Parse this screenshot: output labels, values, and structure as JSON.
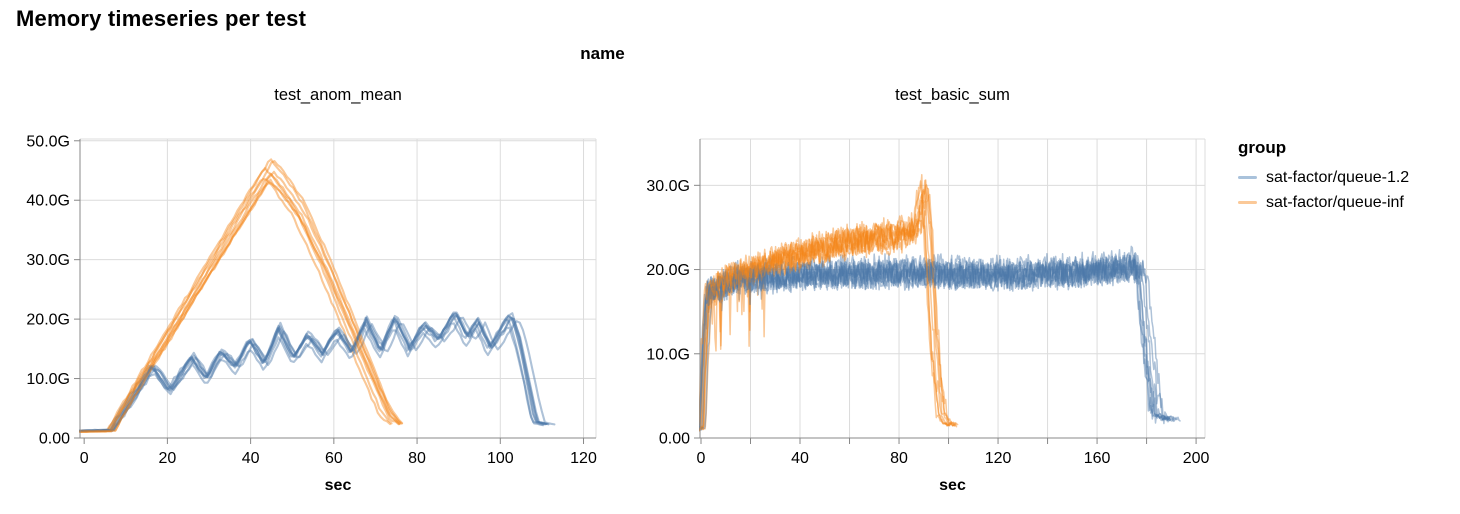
{
  "page_title": "Memory timeseries per test",
  "facet_header": "name",
  "colors": {
    "blue": "#4c78a8",
    "orange": "#f58518",
    "grid": "#dcdcdc",
    "axis": "#888888",
    "label": "#000000",
    "legend_blue_swatch": "#a9c2db",
    "legend_orange_swatch": "#fbc998"
  },
  "legend": {
    "title": "group",
    "position": "right",
    "items": [
      {
        "label": "sat-factor/queue-1.2",
        "swatch": "#a9c2db",
        "series_color": "#4c78a8"
      },
      {
        "label": "sat-factor/queue-inf",
        "swatch": "#fbc998",
        "series_color": "#f58518"
      }
    ]
  },
  "chart_data": [
    {
      "type": "line",
      "title": "test_anom_mean",
      "xlabel": "sec",
      "ylabel": "",
      "grid": true,
      "xlim": [
        -1,
        123
      ],
      "ylim": [
        0,
        50.3
      ],
      "x_ticks": [
        {
          "t": 0,
          "label": "0"
        },
        {
          "t": 20,
          "label": "20"
        },
        {
          "t": 40,
          "label": "40"
        },
        {
          "t": 60,
          "label": "60"
        },
        {
          "t": 80,
          "label": "80"
        },
        {
          "t": 100,
          "label": "100"
        },
        {
          "t": 120,
          "label": "120"
        }
      ],
      "y_ticks": [
        {
          "v": 0,
          "label": "0.00"
        },
        {
          "v": 10,
          "label": "10.0G"
        },
        {
          "v": 20,
          "label": "20.0G"
        },
        {
          "v": 30,
          "label": "30.0G"
        },
        {
          "v": 40,
          "label": "40.0G"
        },
        {
          "v": 50,
          "label": "50.0G"
        }
      ],
      "unit": "G",
      "series": [
        {
          "name": "sat-factor/queue-1.2",
          "color": "#4c78a8",
          "keypoints": [
            [
              -1,
              1.2
            ],
            [
              6.5,
              1.3
            ],
            [
              7.5,
              2.5
            ],
            [
              9,
              4
            ],
            [
              16.5,
              12
            ],
            [
              20.5,
              7.9
            ],
            [
              26,
              13.4
            ],
            [
              29.5,
              9.9
            ],
            [
              33,
              14.4
            ],
            [
              36.5,
              11.8
            ],
            [
              40,
              16.3
            ],
            [
              43.5,
              12.3
            ],
            [
              47,
              18.2
            ],
            [
              50.5,
              13.2
            ],
            [
              54,
              17.1
            ],
            [
              57.5,
              13.9
            ],
            [
              61,
              17.9
            ],
            [
              64.5,
              14.1
            ],
            [
              68,
              19.4
            ],
            [
              71.5,
              14.4
            ],
            [
              75,
              19.9
            ],
            [
              78.5,
              14.7
            ],
            [
              82,
              18.8
            ],
            [
              85.5,
              16.2
            ],
            [
              89.5,
              20.7
            ],
            [
              92.5,
              16.5
            ],
            [
              95,
              19.3
            ],
            [
              98,
              14.9
            ],
            [
              103,
              20.3
            ],
            [
              105,
              16
            ],
            [
              109,
              2.7
            ],
            [
              112,
              2.2
            ]
          ],
          "style": {
            "runs": 8,
            "dt": 0.75,
            "noise": 0.28,
            "t_jitter": 1.0,
            "v_jitter": 0.05,
            "v_offset": 0.9,
            "width": 2.1,
            "opacity": 0.45
          }
        },
        {
          "name": "sat-factor/queue-inf",
          "color": "#f58518",
          "keypoints": [
            [
              -1,
              1.1
            ],
            [
              6.5,
              1.2
            ],
            [
              8,
              3
            ],
            [
              11,
              6.5
            ],
            [
              44.5,
              44.8
            ],
            [
              47,
              43
            ],
            [
              52,
              38
            ],
            [
              58,
              29
            ],
            [
              64,
              19
            ],
            [
              69,
              10.5
            ],
            [
              73,
              4
            ],
            [
              75.5,
              2.4
            ]
          ],
          "style": {
            "runs": 8,
            "dt": 0.75,
            "noise": 0.25,
            "t_jitter": 1.2,
            "v_jitter": 0.04,
            "v_offset": 0.8,
            "width": 2.1,
            "opacity": 0.45
          }
        }
      ]
    },
    {
      "type": "line",
      "title": "test_basic_sum",
      "xlabel": "sec",
      "ylabel": "",
      "grid": true,
      "xlim": [
        -0.4,
        203.6
      ],
      "ylim": [
        0,
        35.5
      ],
      "x_ticks": [
        {
          "t": 0,
          "label": "0"
        },
        {
          "t": 20,
          "label": ""
        },
        {
          "t": 40,
          "label": "40"
        },
        {
          "t": 60,
          "label": ""
        },
        {
          "t": 80,
          "label": "80"
        },
        {
          "t": 100,
          "label": ""
        },
        {
          "t": 120,
          "label": "120"
        },
        {
          "t": 140,
          "label": ""
        },
        {
          "t": 160,
          "label": "160"
        },
        {
          "t": 180,
          "label": ""
        },
        {
          "t": 200,
          "label": "200"
        }
      ],
      "y_ticks": [
        {
          "v": 0,
          "label": "0.00"
        },
        {
          "v": 10,
          "label": "10.0G"
        },
        {
          "v": 20,
          "label": "20.0G"
        },
        {
          "v": 30,
          "label": "30.0G"
        }
      ],
      "unit": "G",
      "series": [
        {
          "name": "sat-factor/queue-1.2",
          "color": "#4c78a8",
          "keypoints": [
            [
              -1.5,
              1
            ],
            [
              0.5,
              1.3
            ],
            [
              1.5,
              9
            ],
            [
              3,
              17.5
            ],
            [
              6,
              18
            ],
            [
              15,
              19
            ],
            [
              40,
              19.5
            ],
            [
              80,
              19.8
            ],
            [
              120,
              19.6
            ],
            [
              150,
              19.8
            ],
            [
              170,
              20.3
            ],
            [
              176,
              20.8
            ],
            [
              178,
              19.5
            ],
            [
              180,
              13
            ],
            [
              183,
              5
            ],
            [
              185,
              2.8
            ],
            [
              188,
              2.4
            ],
            [
              191,
              2.2
            ]
          ],
          "style": {
            "runs": 8,
            "dt": 0.4,
            "noise": 1.55,
            "t_jitter": 1.5,
            "v_jitter": 0.04,
            "v_offset": 1.4,
            "width": 1.5,
            "opacity": 0.45
          },
          "dropouts": {
            "t0": 3,
            "t1": 25,
            "p": 0.03,
            "depth": 5
          }
        },
        {
          "name": "sat-factor/queue-inf",
          "color": "#f58518",
          "keypoints": [
            [
              -1.5,
              1
            ],
            [
              0.5,
              1.2
            ],
            [
              1.5,
              9
            ],
            [
              3,
              17
            ],
            [
              6,
              17.8
            ],
            [
              12,
              19
            ],
            [
              25,
              20.5
            ],
            [
              40,
              21.8
            ],
            [
              55,
              23
            ],
            [
              70,
              23.8
            ],
            [
              82,
              24.2
            ],
            [
              87,
              25
            ],
            [
              89.5,
              28.5
            ],
            [
              90.5,
              29.8
            ],
            [
              91.5,
              25
            ],
            [
              93,
              17
            ],
            [
              95,
              8
            ],
            [
              97,
              3
            ],
            [
              99,
              1.8
            ],
            [
              102,
              1.5
            ]
          ],
          "style": {
            "runs": 8,
            "dt": 0.4,
            "noise": 1.4,
            "t_jitter": 1.5,
            "v_jitter": 0.04,
            "v_offset": 1.2,
            "width": 1.5,
            "opacity": 0.45
          },
          "dropouts": {
            "t0": 3,
            "t1": 28,
            "p": 0.06,
            "depth": 9
          }
        }
      ]
    }
  ]
}
